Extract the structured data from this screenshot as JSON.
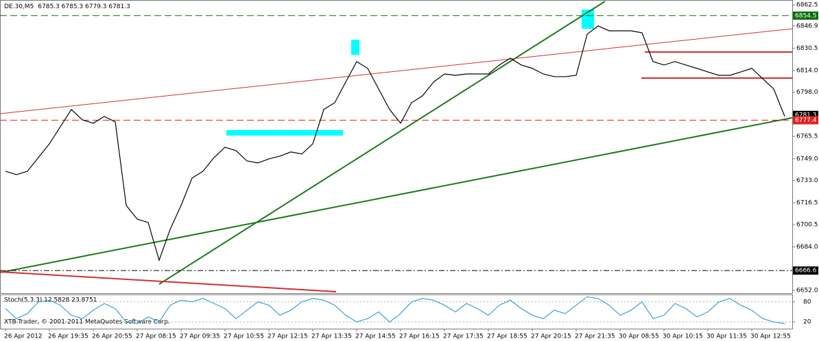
{
  "chart_data": {
    "type": "line",
    "ohlc": "6785.3 6785.3 6779.3 6781.3",
    "footer": "XTB-Trader, © 2001-2011 MetaQuotes Software Corp.",
    "categories": [
      "26 Apr 2012",
      null,
      null,
      null,
      "26 Apr 19:35",
      null,
      null,
      null,
      "26 Apr 20:55",
      null,
      null,
      null,
      "27 Apr 08:15",
      null,
      null,
      null,
      "27 Apr 09:35",
      null,
      null,
      null,
      "27 Apr 10:55",
      null,
      null,
      null,
      "27 Apr 12:15",
      null,
      null,
      null,
      "27 Apr 13:35",
      null,
      null,
      null,
      "27 Apr 14:55",
      null,
      null,
      null,
      "27 Apr 16:15",
      null,
      null,
      null,
      "27 Apr 17:35",
      null,
      null,
      null,
      "27 Apr 18:55",
      null,
      null,
      null,
      "27 Apr 20:15",
      null,
      null,
      null,
      "27 Apr 21:35",
      null,
      null,
      null,
      "30 Apr 08:55",
      null,
      null,
      null,
      "30 Apr 10:15",
      null,
      null,
      null,
      "30 Apr 11:35",
      null,
      null,
      null,
      "30 Apr 12:55",
      null,
      null,
      null
    ],
    "series": [
      {
        "name": "DE.30,M5",
        "color": "#000000",
        "values": [
          6739.8,
          6737.3,
          6739.8,
          6749.9,
          6760.0,
          6772.6,
          6785.3,
          6777.7,
          6775.2,
          6780.2,
          6776.2,
          6714.6,
          6704.5,
          6702.0,
          6674.2,
          6696.9,
          6714.6,
          6734.8,
          6739.8,
          6749.9,
          6757.5,
          6755.0,
          6747.4,
          6745.9,
          6748.9,
          6750.9,
          6754.0,
          6752.5,
          6760.0,
          6785.3,
          6790.3,
          6805.5,
          6820.6,
          6815.6,
          6800.4,
          6785.3,
          6775.2,
          6790.3,
          6795.4,
          6805.5,
          6811.5,
          6810.5,
          6811.5,
          6811.5,
          6811.5,
          6818.1,
          6823.1,
          6818.1,
          6815.6,
          6811.5,
          6809.5,
          6809.5,
          6810.5,
          6840.8,
          6846.9,
          6843.3,
          6843.3,
          6843.3,
          6841.8,
          6820.6,
          6818.1,
          6820.6,
          6818.1,
          6815.6,
          6813.0,
          6810.5,
          6810.5,
          6813.0,
          6815.6,
          6808.0,
          6800.4,
          6780.2
        ]
      },
      {
        "name": "Stoch(5,3,3) 12.5828 23.8751",
        "color": "#3aa0d0",
        "axis": "y2",
        "values": [
          60,
          30,
          45,
          80,
          85,
          70,
          40,
          30,
          55,
          75,
          60,
          20,
          15,
          35,
          20,
          70,
          85,
          80,
          90,
          75,
          60,
          30,
          55,
          80,
          70,
          40,
          55,
          80,
          90,
          85,
          70,
          40,
          20,
          30,
          50,
          20,
          45,
          80,
          90,
          85,
          70,
          50,
          75,
          60,
          40,
          70,
          85,
          60,
          40,
          30,
          55,
          45,
          70,
          95,
          90,
          70,
          40,
          55,
          80,
          30,
          40,
          75,
          60,
          35,
          50,
          80,
          90,
          70,
          55,
          30,
          20,
          15
        ]
      }
    ],
    "ylim": [
      6650,
      6866
    ],
    "yticks": [
      6862.5,
      6846.9,
      6830.5,
      {
        "value": 6814,
        "label": "6814.0"
      },
      {
        "value": 6798,
        "label": "6798.0"
      },
      6765.5,
      {
        "value": 6749,
        "label": "6749.0"
      },
      {
        "value": 6733,
        "label": "6733.0"
      },
      6716.5,
      6700.5,
      {
        "value": 6684,
        "label": "6684.0"
      },
      {
        "value": 6652,
        "label": "6652.0"
      }
    ],
    "y2lim": [
      0,
      100
    ],
    "y2ticks": [
      80,
      20
    ],
    "levels": [
      {
        "value": 6854.5,
        "color": "#0a6e0a"
      },
      {
        "value": 6781.3,
        "color": "#000000"
      },
      {
        "value": 6777.4,
        "color": "#e02020"
      },
      {
        "value": 6666.6,
        "color": "#000000"
      }
    ]
  }
}
